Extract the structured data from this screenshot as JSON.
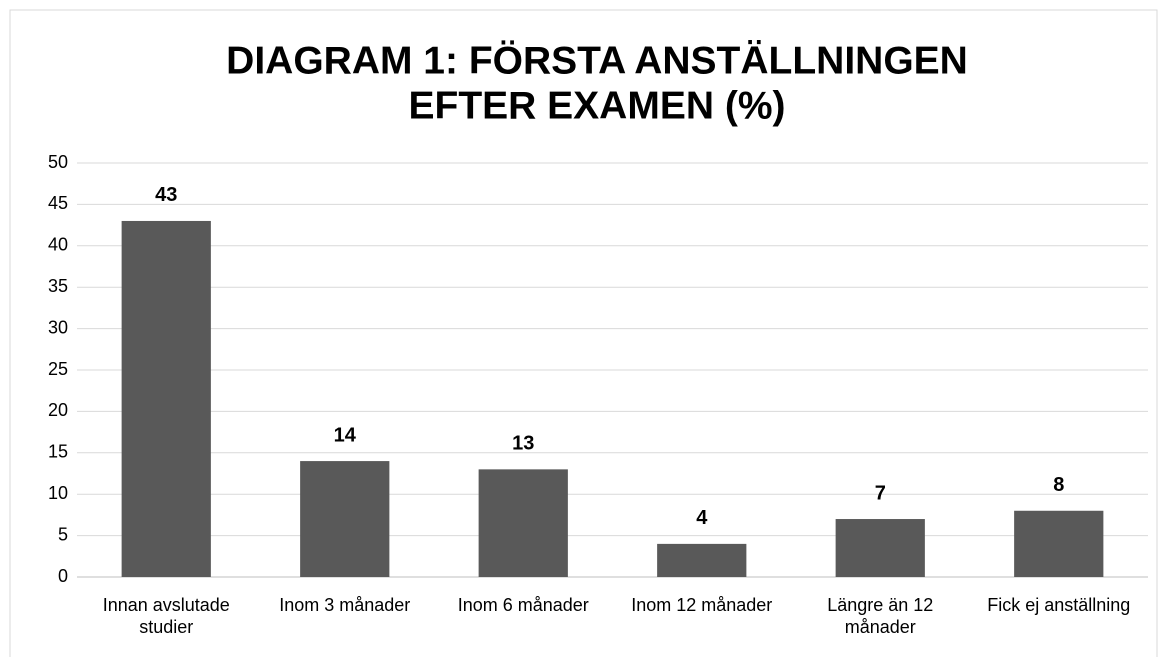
{
  "chart_data": {
    "type": "bar",
    "title": [
      "DIAGRAM 1: FÖRSTA ANSTÄLLNINGEN",
      "EFTER EXAMEN (%)"
    ],
    "categories": [
      "Innan avslutade studier",
      "Inom 3 månader",
      "Inom 6 månader",
      "Inom 12 månader",
      "Längre än 12 månader",
      "Fick ej anställning"
    ],
    "values": [
      43,
      14,
      13,
      4,
      7,
      8
    ],
    "color": "#595959",
    "ylim": [
      0,
      50
    ],
    "yticks": [
      0,
      5,
      10,
      15,
      20,
      25,
      30,
      35,
      40,
      45,
      50
    ],
    "grid": true
  }
}
